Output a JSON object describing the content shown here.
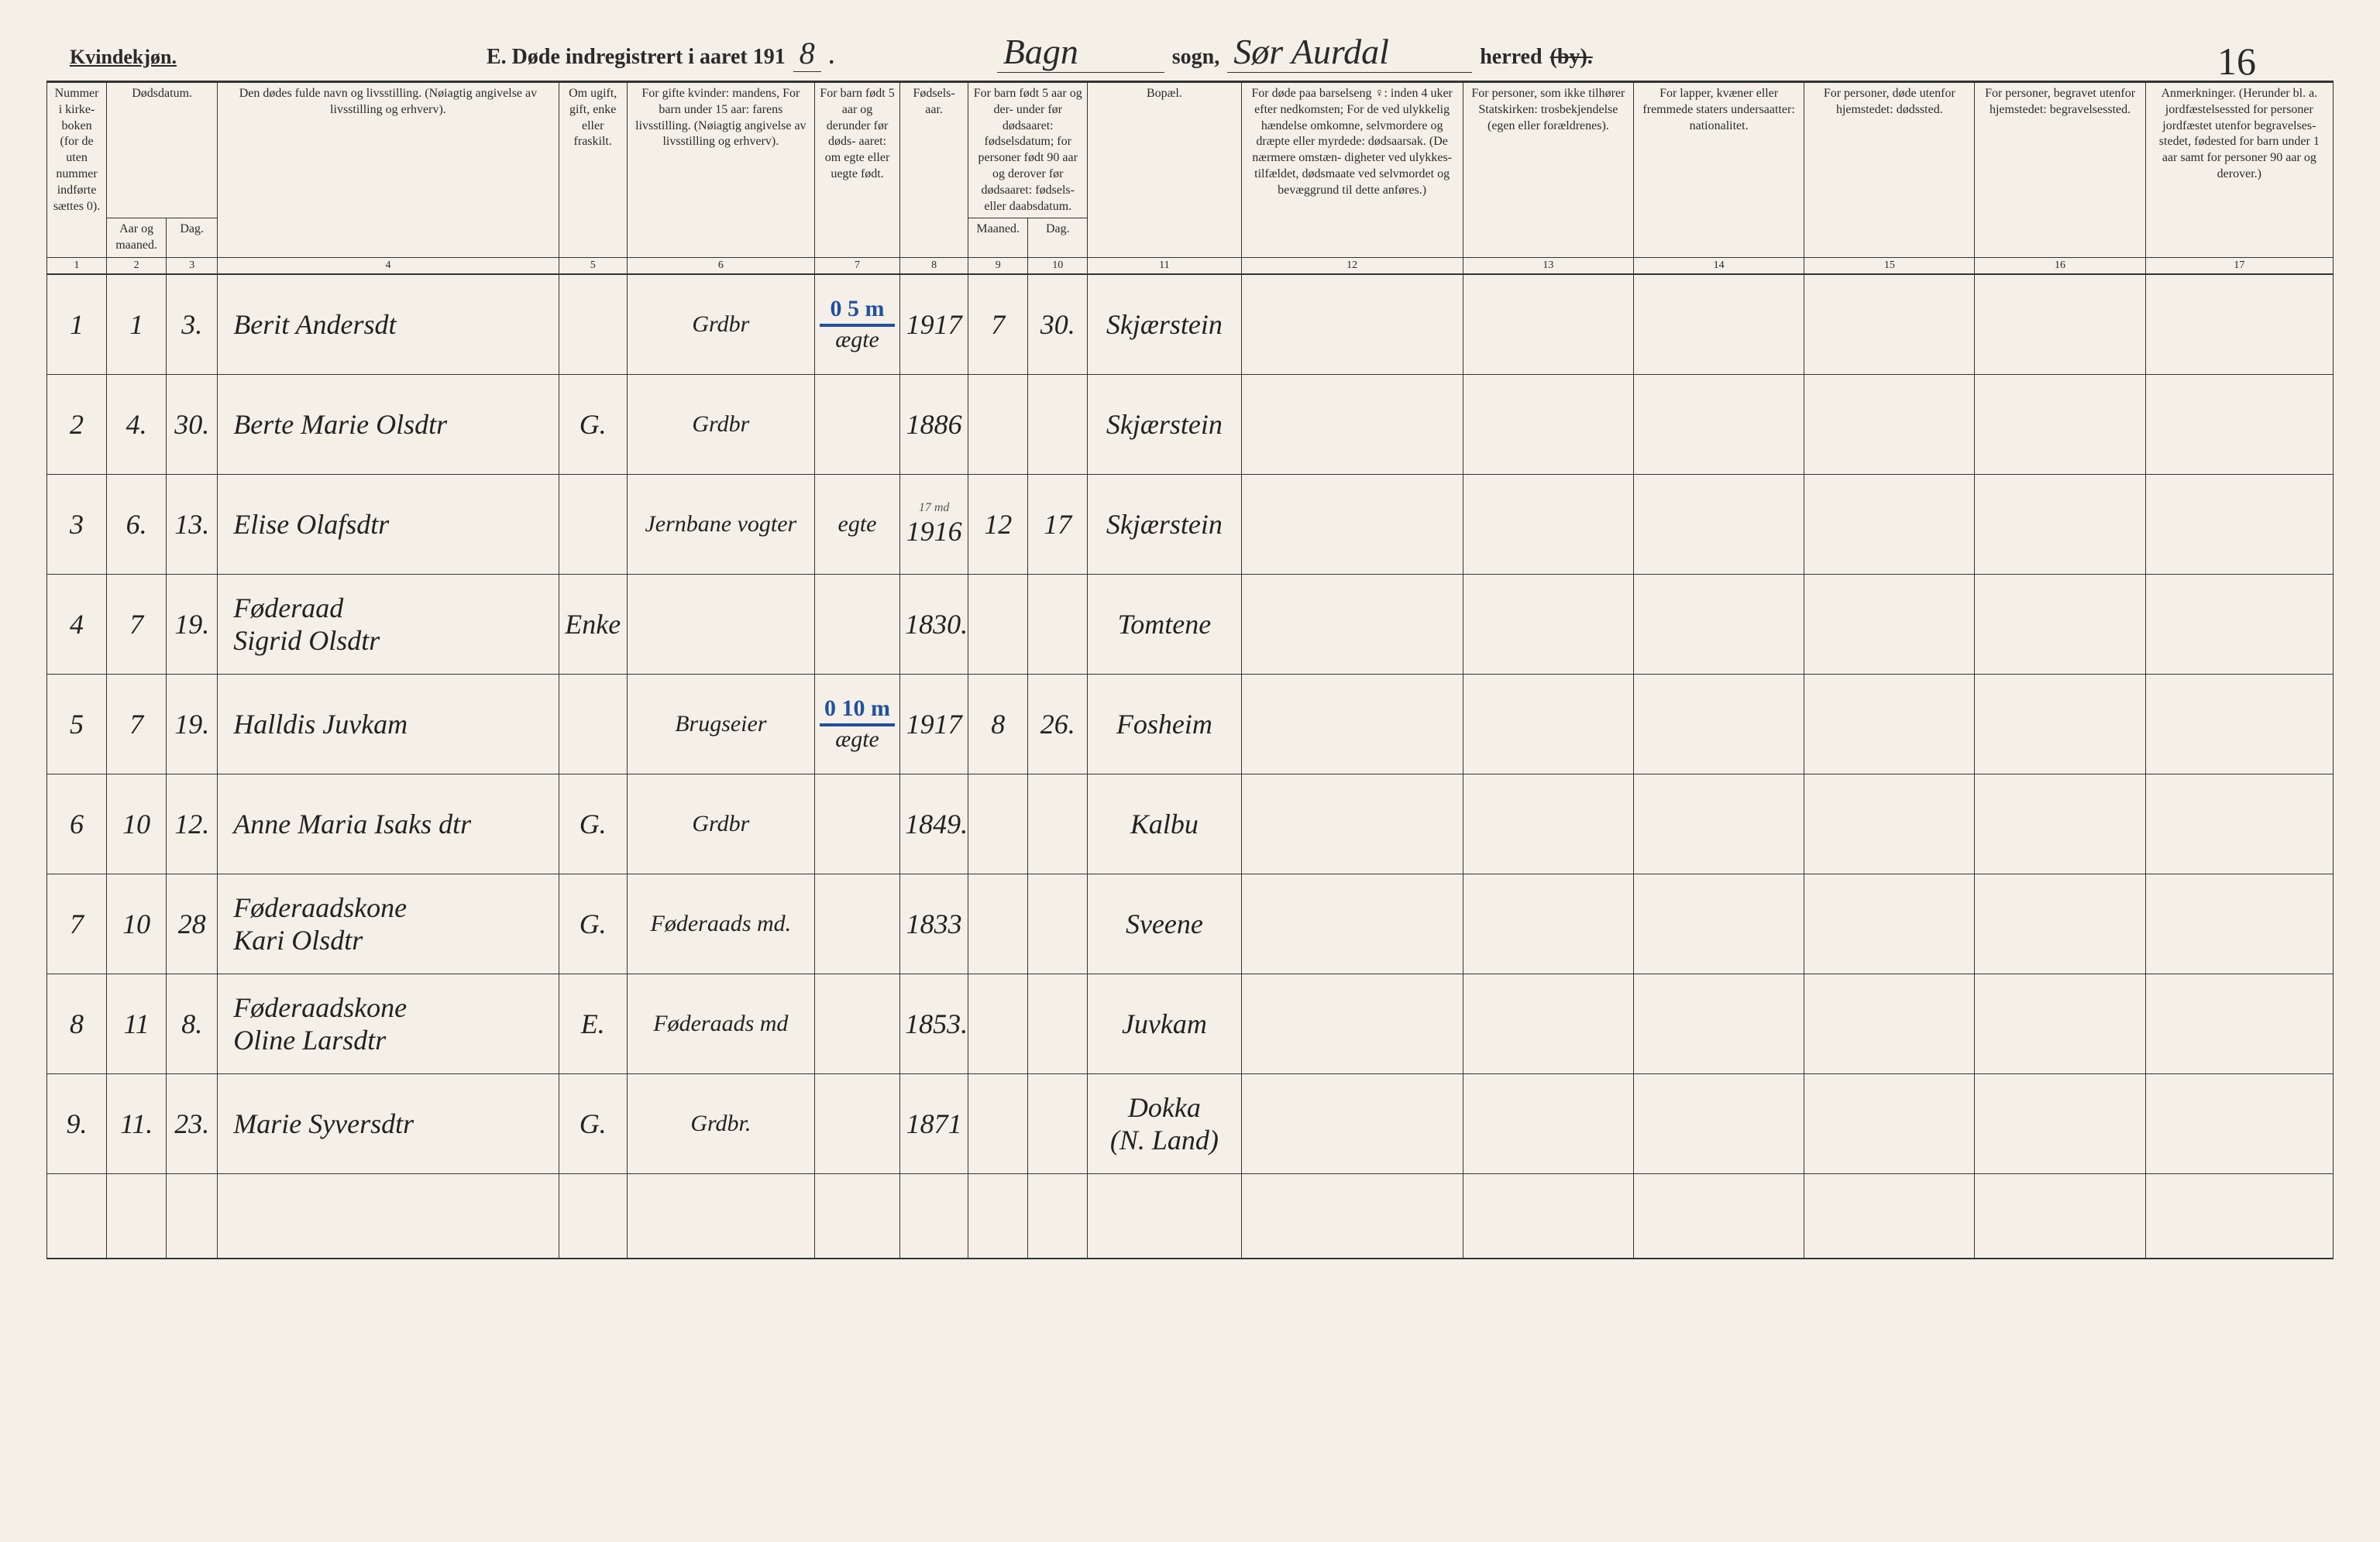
{
  "header": {
    "gender": "Kvindekjøn.",
    "title_prefix": "E.  Døde indregistrert i aaret 191",
    "year_digit": "8",
    "sogn_label": "sogn,",
    "sogn_value": "Bagn",
    "herred_label": "herred",
    "herred_strike": "(by).",
    "herred_value": "Sør Aurdal",
    "page_number": "16"
  },
  "columns": {
    "c1": "Nummer i kirke-\nboken\n(for de uten nummer indførte sættes 0).",
    "c2a": "Dødsdatum.",
    "c2": "Aar og maaned.",
    "c3": "Dag.",
    "c4": "Den dødes fulde navn og livsstilling.\n(Nøiagtig angivelse av livsstilling og erhverv).",
    "c5": "Om ugift, gift, enke eller fraskilt.",
    "c6": "For gifte kvinder:\nmandens,\nFor barn under 15 aar:\nfarens livsstilling.\n(Nøiagtig angivelse av livsstilling og erhverv).",
    "c7": "For barn født 5 aar og derunder før døds-\naaret:\nom egte eller uegte født.",
    "c8": "Fødsels-\naar.",
    "c9_10": "For barn født 5 aar og der-\nunder før dødsaaret:\nfødselsdatum;\nfor personer født 90 aar og derover før dødsaaret:\nfødsels- eller daabsdatum.",
    "c9": "Maaned.",
    "c10": "Dag.",
    "c11": "Bopæl.",
    "c12": "For døde paa barselseng ♀: inden 4 uker efter nedkomsten;\nFor de ved ulykkelig hændelse omkomne, selvmordere og dræpte eller myrdede:\ndødsaarsak.\n(De nærmere omstæn-\ndigheter ved ulykkes-\ntilfældet, dødsmaate ved selvmordet og bevæggrund til dette anføres.)",
    "c13": "For personer, som ikke tilhører Statskirken:\ntrosbekjendelse\n(egen eller forældrenes).",
    "c14": "For lapper, kvæner eller fremmede staters undersaatter:\nnationalitet.",
    "c15": "For personer, døde utenfor hjemstedet:\ndødssted.",
    "c16": "For personer, begravet utenfor hjemstedet:\nbegravelsessted.",
    "c17": "Anmerkninger.\n(Herunder bl. a. jordfæstelsessted for personer jordfæstet utenfor begravelses-\nstedet, fødested for barn under 1 aar samt for personer 90 aar og derover.)"
  },
  "colnums": [
    "1",
    "2",
    "3",
    "4",
    "5",
    "6",
    "7",
    "8",
    "9",
    "10",
    "11",
    "12",
    "13",
    "14",
    "15",
    "16",
    "17"
  ],
  "blue_notes": {
    "r1": "0 5 m",
    "r5": "0 10 m"
  },
  "rows": [
    {
      "num": "1",
      "mon": "1",
      "day": "3.",
      "name": "Berit Andersdt",
      "status": "",
      "occ": "Grdbr",
      "legit": "ægte",
      "year": "1917",
      "bm": "7",
      "bd": "30.",
      "place": "Skjærstein"
    },
    {
      "num": "2",
      "mon": "4.",
      "day": "30.",
      "name": "Berte Marie Olsdtr",
      "status": "G.",
      "occ": "Grdbr",
      "legit": "",
      "year": "1886",
      "bm": "",
      "bd": "",
      "place": "Skjærstein"
    },
    {
      "num": "3",
      "mon": "6.",
      "day": "13.",
      "name": "Elise Olafsdtr",
      "status": "",
      "occ": "Jernbane vogter",
      "legit": "egte",
      "year": "1916",
      "bm": "12",
      "bd": "17",
      "place": "Skjærstein",
      "anno": "17 md"
    },
    {
      "num": "4",
      "mon": "7",
      "day": "19.",
      "name": "Føderaad\nSigrid Olsdtr",
      "status": "Enke",
      "occ": "",
      "legit": "",
      "year": "1830.",
      "bm": "",
      "bd": "",
      "place": "Tomtene"
    },
    {
      "num": "5",
      "mon": "7",
      "day": "19.",
      "name": "Halldis Juvkam",
      "status": "",
      "occ": "Brugseier",
      "legit": "ægte",
      "year": "1917",
      "bm": "8",
      "bd": "26.",
      "place": "Fosheim"
    },
    {
      "num": "6",
      "mon": "10",
      "day": "12.",
      "name": "Anne Maria Isaks dtr",
      "status": "G.",
      "occ": "Grdbr",
      "legit": "",
      "year": "1849.",
      "bm": "",
      "bd": "",
      "place": "Kalbu"
    },
    {
      "num": "7",
      "mon": "10",
      "day": "28",
      "name": "Føderaadskone\nKari Olsdtr",
      "status": "G.",
      "occ": "Føderaads md.",
      "legit": "",
      "year": "1833",
      "bm": "",
      "bd": "",
      "place": "Sveene"
    },
    {
      "num": "8",
      "mon": "11",
      "day": "8.",
      "name": "Føderaadskone\nOline Larsdtr",
      "status": "E.",
      "occ": "Føderaads md",
      "legit": "",
      "year": "1853.",
      "bm": "",
      "bd": "",
      "place": "Juvkam"
    },
    {
      "num": "9.",
      "mon": "11.",
      "day": "23.",
      "name": "Marie Syversdtr",
      "status": "G.",
      "occ": "Grdbr.",
      "legit": "",
      "year": "1871",
      "bm": "",
      "bd": "",
      "place": "Dokka\n(N. Land)"
    }
  ],
  "style": {
    "bg": "#f4f0e8",
    "ink": "#2a2a2a",
    "blue": "#2050a0",
    "cursive_font": "Brush Script MT",
    "print_font": "Times New Roman",
    "header_fontsize": 28,
    "cursive_fontsize": 36,
    "th_fontsize": 16
  }
}
